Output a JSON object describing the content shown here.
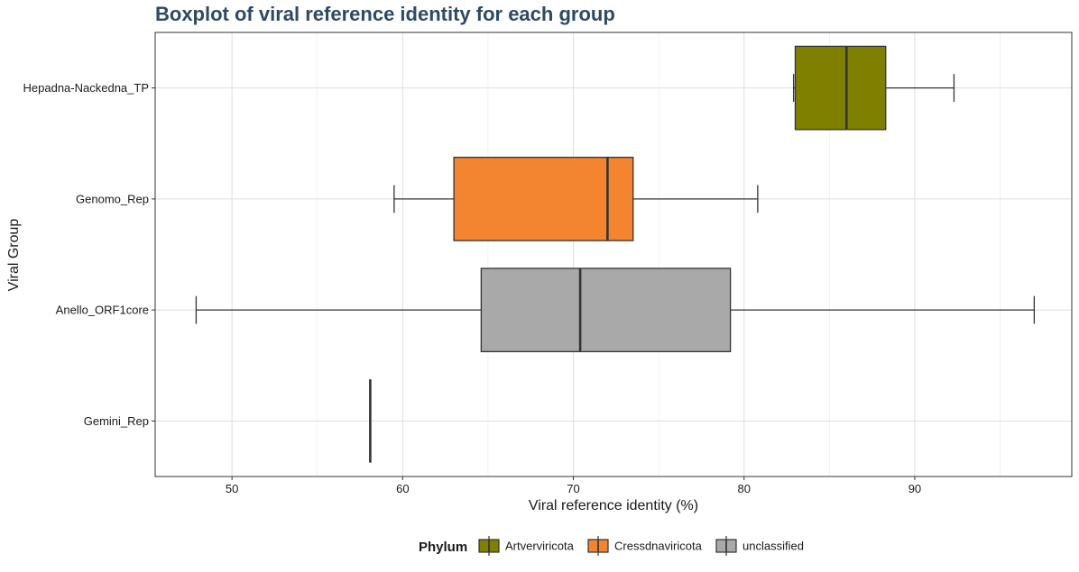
{
  "chart_data": {
    "type": "boxplot",
    "orientation": "horizontal",
    "title": "Boxplot of viral reference identity for each group",
    "xlabel": "Viral reference identity (%)",
    "ylabel": "Viral Group",
    "xlim": [
      45.5,
      99.2
    ],
    "x_ticks": [
      50,
      60,
      70,
      80,
      90
    ],
    "x_tick_labels": [
      "50",
      "60",
      "70",
      "80",
      "90"
    ],
    "categories": [
      "Hepadna-Nackedna_TP",
      "Genomo_Rep",
      "Anello_ORF1core",
      "Gemini_Rep"
    ],
    "grid": true,
    "legend": {
      "title": "Phylum",
      "position": "bottom",
      "entries": [
        {
          "label": "Artverviricota",
          "color": "#808000"
        },
        {
          "label": "Cressdnaviricota",
          "color": "#f38430"
        },
        {
          "label": "unclassified",
          "color": "#a9a9a9"
        }
      ]
    },
    "boxes": [
      {
        "group": "Hepadna-Nackedna_TP",
        "phylum": "Artverviricota",
        "min": 82.9,
        "q1": 83.0,
        "median": 86.0,
        "q3": 88.3,
        "max": 92.3,
        "color": "#808000"
      },
      {
        "group": "Genomo_Rep",
        "phylum": "Cressdnaviricota",
        "min": 59.5,
        "q1": 63.0,
        "median": 72.0,
        "q3": 73.5,
        "max": 80.8,
        "color": "#f38430"
      },
      {
        "group": "Anello_ORF1core",
        "phylum": "unclassified",
        "min": 47.9,
        "q1": 64.6,
        "median": 70.4,
        "q3": 79.2,
        "max": 97.0,
        "color": "#a9a9a9"
      },
      {
        "group": "Gemini_Rep",
        "phylum": "Artverviricota",
        "min": 58.1,
        "q1": 58.1,
        "median": 58.1,
        "q3": 58.1,
        "max": 58.1,
        "color": "#808000"
      }
    ]
  }
}
